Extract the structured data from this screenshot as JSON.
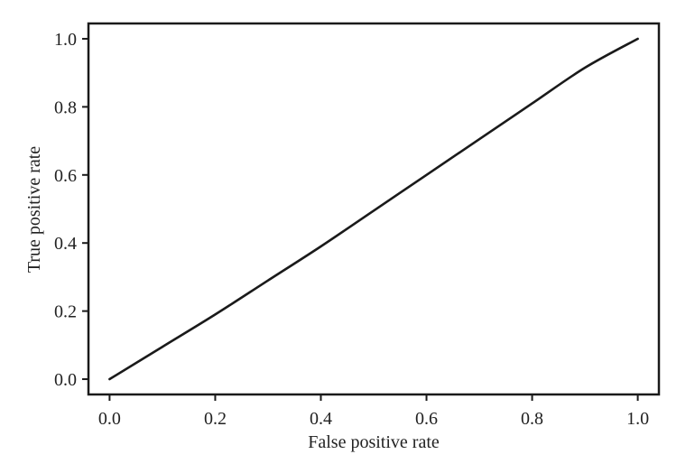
{
  "chart_data": {
    "type": "line",
    "title": "",
    "xlabel": "False positive rate",
    "ylabel": "True positive rate",
    "xlim": [
      -0.04,
      1.04
    ],
    "ylim": [
      -0.045,
      1.045
    ],
    "xticks": [
      "0.0",
      "0.2",
      "0.4",
      "0.6",
      "0.8",
      "1.0"
    ],
    "yticks": [
      "0.0",
      "0.2",
      "0.4",
      "0.6",
      "0.8",
      "1.0"
    ],
    "grid": false,
    "legend": "none",
    "series": [
      {
        "x": [
          0.0,
          0.1,
          0.2,
          0.3,
          0.4,
          0.5,
          0.6,
          0.7,
          0.8,
          0.9,
          1.0
        ],
        "y": [
          0.0,
          0.095,
          0.19,
          0.29,
          0.39,
          0.495,
          0.6,
          0.705,
          0.81,
          0.915,
          1.0
        ],
        "color": "#1a1a1a"
      }
    ]
  }
}
